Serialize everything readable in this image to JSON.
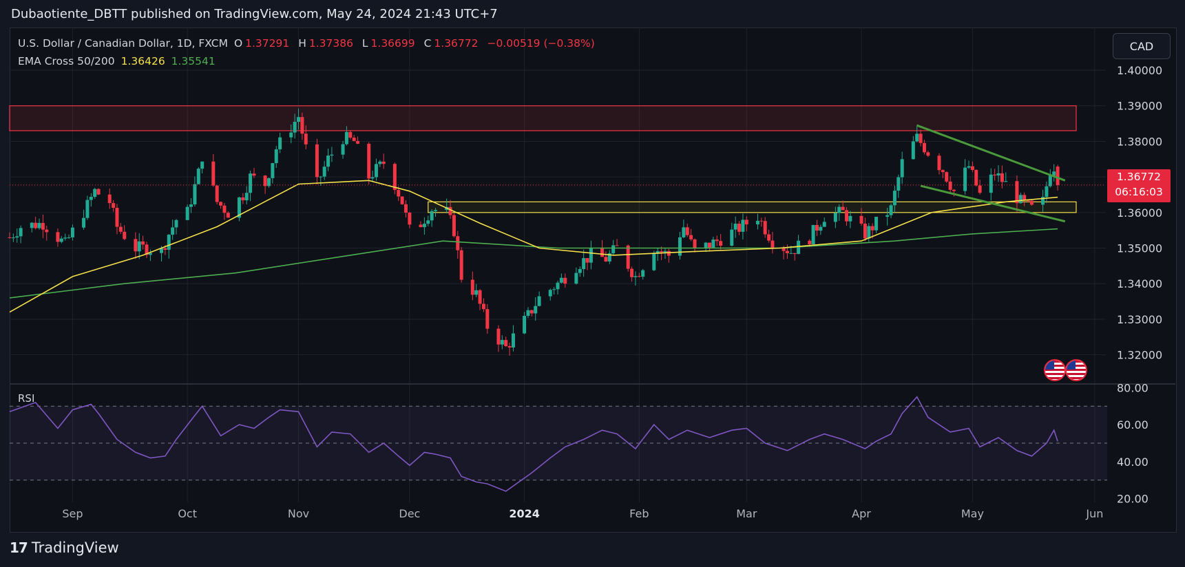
{
  "header": {
    "published_text": "Dubaotiente_DBTT published on TradingView.com, May 24, 2024 21:43 UTC+7"
  },
  "legend": {
    "symbol": "U.S. Dollar / Canadian Dollar, 1D, FXCM",
    "open_label": "O",
    "open": "1.37291",
    "high_label": "H",
    "high": "1.37386",
    "low_label": "L",
    "low": "1.36699",
    "close_label": "C",
    "close": "1.36772",
    "change": "−0.00519 (−0.38%)",
    "indicator": "EMA Cross 50/200",
    "ema50": "1.36426",
    "ema200": "1.35541"
  },
  "currency_button": "CAD",
  "price_tag": {
    "price": "1.36772",
    "countdown": "06:16:03"
  },
  "rsi_label": "RSI",
  "footer": {
    "brand": "TradingView"
  },
  "colors": {
    "up": "#22ab94",
    "down": "#f23645",
    "ema50": "#f5e04a",
    "ema200": "#4caf50",
    "rsi": "#7e57c2",
    "zone_red": "#f23645",
    "zone_yellow": "#f5e04a",
    "channel": "#4a9a3c"
  },
  "chart_data": [
    {
      "type": "candlestick",
      "symbol": "USDCAD",
      "timeframe": "1D",
      "ylim": [
        1.312,
        1.412
      ],
      "y_ticks": [
        "1.32000",
        "1.33000",
        "1.34000",
        "1.35000",
        "1.36000",
        "1.37000",
        "1.38000",
        "1.39000",
        "1.40000"
      ],
      "x_ticks": [
        {
          "label": "Sep",
          "date": "2023-09-01"
        },
        {
          "label": "Oct",
          "date": "2023-10-02"
        },
        {
          "label": "Nov",
          "date": "2023-11-01"
        },
        {
          "label": "Dec",
          "date": "2023-12-01"
        },
        {
          "label": "2024",
          "date": "2024-01-01"
        },
        {
          "label": "Feb",
          "date": "2024-02-01"
        },
        {
          "label": "Mar",
          "date": "2024-03-01"
        },
        {
          "label": "Apr",
          "date": "2024-04-01"
        },
        {
          "label": "May",
          "date": "2024-05-01"
        },
        {
          "label": "Jun",
          "date": "2024-06-03"
        }
      ],
      "x_range": [
        "2023-08-15",
        "2024-06-06"
      ],
      "close_path": [
        [
          "2023-08-15",
          1.353
        ],
        [
          "2023-08-18",
          1.356
        ],
        [
          "2023-08-24",
          1.357
        ],
        [
          "2023-08-30",
          1.351
        ],
        [
          "2023-09-05",
          1.362
        ],
        [
          "2023-09-07",
          1.366
        ],
        [
          "2023-09-11",
          1.363
        ],
        [
          "2023-09-13",
          1.356
        ],
        [
          "2023-09-18",
          1.35
        ],
        [
          "2023-09-21",
          1.35
        ],
        [
          "2023-09-25",
          1.349
        ],
        [
          "2023-09-27",
          1.354
        ],
        [
          "2023-09-29",
          1.358
        ],
        [
          "2023-10-02",
          1.36
        ],
        [
          "2023-10-05",
          1.371
        ],
        [
          "2023-10-06",
          1.376
        ],
        [
          "2023-10-10",
          1.363
        ],
        [
          "2023-10-13",
          1.36
        ],
        [
          "2023-10-17",
          1.365
        ],
        [
          "2023-10-19",
          1.37
        ],
        [
          "2023-10-23",
          1.368
        ],
        [
          "2023-10-26",
          1.378
        ],
        [
          "2023-10-30",
          1.384
        ],
        [
          "2023-11-01",
          1.387
        ],
        [
          "2023-11-03",
          1.378
        ],
        [
          "2023-11-06",
          1.368
        ],
        [
          "2023-11-09",
          1.375
        ],
        [
          "2023-11-13",
          1.381
        ],
        [
          "2023-11-16",
          1.38
        ],
        [
          "2023-11-20",
          1.37
        ],
        [
          "2023-11-24",
          1.374
        ],
        [
          "2023-11-27",
          1.368
        ],
        [
          "2023-11-29",
          1.363
        ],
        [
          "2023-12-01",
          1.355
        ],
        [
          "2023-12-04",
          1.357
        ],
        [
          "2023-12-07",
          1.361
        ],
        [
          "2023-12-11",
          1.36
        ],
        [
          "2023-12-13",
          1.355
        ],
        [
          "2023-12-15",
          1.342
        ],
        [
          "2023-12-19",
          1.337
        ],
        [
          "2023-12-22",
          1.328
        ],
        [
          "2023-12-27",
          1.322
        ],
        [
          "2024-01-02",
          1.331
        ],
        [
          "2024-01-05",
          1.336
        ],
        [
          "2024-01-10",
          1.34
        ],
        [
          "2024-01-15",
          1.345
        ],
        [
          "2024-01-19",
          1.348
        ],
        [
          "2024-01-23",
          1.347
        ],
        [
          "2024-01-26",
          1.35
        ],
        [
          "2024-01-31",
          1.342
        ],
        [
          "2024-02-05",
          1.35
        ],
        [
          "2024-02-09",
          1.348
        ],
        [
          "2024-02-13",
          1.356
        ],
        [
          "2024-02-16",
          1.349
        ],
        [
          "2024-02-22",
          1.352
        ],
        [
          "2024-02-27",
          1.355
        ],
        [
          "2024-03-04",
          1.359
        ],
        [
          "2024-03-08",
          1.352
        ],
        [
          "2024-03-13",
          1.349
        ],
        [
          "2024-03-18",
          1.353
        ],
        [
          "2024-03-22",
          1.359
        ],
        [
          "2024-03-27",
          1.36
        ],
        [
          "2024-04-02",
          1.354
        ],
        [
          "2024-04-05",
          1.357
        ],
        [
          "2024-04-09",
          1.361
        ],
        [
          "2024-04-12",
          1.374
        ],
        [
          "2024-04-16",
          1.381
        ],
        [
          "2024-04-19",
          1.377
        ],
        [
          "2024-04-23",
          1.372
        ],
        [
          "2024-04-26",
          1.366
        ],
        [
          "2024-04-30",
          1.373
        ],
        [
          "2024-05-03",
          1.365
        ],
        [
          "2024-05-07",
          1.371
        ],
        [
          "2024-05-10",
          1.368
        ],
        [
          "2024-05-14",
          1.363
        ],
        [
          "2024-05-17",
          1.361
        ],
        [
          "2024-05-20",
          1.363
        ],
        [
          "2024-05-22",
          1.372
        ],
        [
          "2024-05-23",
          1.373
        ],
        [
          "2024-05-24",
          1.3677
        ]
      ],
      "ema50": [
        [
          "2023-08-15",
          1.332
        ],
        [
          "2023-09-01",
          1.342
        ],
        [
          "2023-09-20",
          1.348
        ],
        [
          "2023-10-10",
          1.356
        ],
        [
          "2023-11-01",
          1.368
        ],
        [
          "2023-11-20",
          1.369
        ],
        [
          "2023-12-01",
          1.366
        ],
        [
          "2023-12-20",
          1.357
        ],
        [
          "2024-01-05",
          1.35
        ],
        [
          "2024-01-25",
          1.348
        ],
        [
          "2024-02-15",
          1.349
        ],
        [
          "2024-03-10",
          1.35
        ],
        [
          "2024-04-01",
          1.352
        ],
        [
          "2024-04-20",
          1.36
        ],
        [
          "2024-05-10",
          1.363
        ],
        [
          "2024-05-24",
          1.3643
        ]
      ],
      "ema200": [
        [
          "2023-08-15",
          1.336
        ],
        [
          "2023-09-15",
          1.34
        ],
        [
          "2023-10-15",
          1.343
        ],
        [
          "2023-11-15",
          1.348
        ],
        [
          "2023-12-10",
          1.352
        ],
        [
          "2024-01-10",
          1.35
        ],
        [
          "2024-02-10",
          1.35
        ],
        [
          "2024-03-10",
          1.35
        ],
        [
          "2024-04-10",
          1.352
        ],
        [
          "2024-05-01",
          1.354
        ],
        [
          "2024-05-24",
          1.3554
        ]
      ],
      "red_zone": {
        "from": "2023-08-15",
        "to": "2024-05-29",
        "y_high": 1.39,
        "y_low": 1.383
      },
      "yellow_zone": {
        "from": "2023-12-06",
        "to": "2024-05-29",
        "y_high": 1.363,
        "y_low": 1.36
      },
      "channel_upper": [
        [
          "2024-04-16",
          1.3845
        ],
        [
          "2024-05-26",
          1.369
        ]
      ],
      "channel_lower": [
        [
          "2024-04-17",
          1.3675
        ],
        [
          "2024-05-26",
          1.3575
        ]
      ]
    },
    {
      "type": "line",
      "name": "RSI",
      "ylim": [
        18,
        82
      ],
      "y_ticks": [
        "20.00",
        "40.00",
        "60.00",
        "80.00"
      ],
      "bands": [
        70,
        50,
        30
      ],
      "values": [
        [
          "2023-08-15",
          67
        ],
        [
          "2023-08-22",
          72
        ],
        [
          "2023-08-28",
          58
        ],
        [
          "2023-09-01",
          68
        ],
        [
          "2023-09-06",
          71
        ],
        [
          "2023-09-08",
          66
        ],
        [
          "2023-09-13",
          52
        ],
        [
          "2023-09-18",
          45
        ],
        [
          "2023-09-22",
          42
        ],
        [
          "2023-09-26",
          43
        ],
        [
          "2023-09-29",
          52
        ],
        [
          "2023-10-04",
          65
        ],
        [
          "2023-10-06",
          70
        ],
        [
          "2023-10-11",
          54
        ],
        [
          "2023-10-16",
          60
        ],
        [
          "2023-10-20",
          58
        ],
        [
          "2023-10-24",
          64
        ],
        [
          "2023-10-27",
          68
        ],
        [
          "2023-11-01",
          67
        ],
        [
          "2023-11-06",
          48
        ],
        [
          "2023-11-10",
          56
        ],
        [
          "2023-11-15",
          55
        ],
        [
          "2023-11-20",
          45
        ],
        [
          "2023-11-24",
          50
        ],
        [
          "2023-11-28",
          43
        ],
        [
          "2023-12-01",
          38
        ],
        [
          "2023-12-05",
          45
        ],
        [
          "2023-12-08",
          44
        ],
        [
          "2023-12-12",
          42
        ],
        [
          "2023-12-15",
          32
        ],
        [
          "2023-12-19",
          29
        ],
        [
          "2023-12-22",
          28
        ],
        [
          "2023-12-27",
          24
        ],
        [
          "2024-01-03",
          34
        ],
        [
          "2024-01-08",
          42
        ],
        [
          "2024-01-12",
          48
        ],
        [
          "2024-01-17",
          52
        ],
        [
          "2024-01-22",
          57
        ],
        [
          "2024-01-26",
          55
        ],
        [
          "2024-01-31",
          47
        ],
        [
          "2024-02-05",
          60
        ],
        [
          "2024-02-09",
          52
        ],
        [
          "2024-02-14",
          57
        ],
        [
          "2024-02-20",
          53
        ],
        [
          "2024-02-26",
          57
        ],
        [
          "2024-03-01",
          58
        ],
        [
          "2024-03-06",
          50
        ],
        [
          "2024-03-12",
          46
        ],
        [
          "2024-03-18",
          52
        ],
        [
          "2024-03-22",
          55
        ],
        [
          "2024-03-27",
          52
        ],
        [
          "2024-04-02",
          47
        ],
        [
          "2024-04-05",
          51
        ],
        [
          "2024-04-09",
          55
        ],
        [
          "2024-04-12",
          66
        ],
        [
          "2024-04-16",
          75
        ],
        [
          "2024-04-19",
          64
        ],
        [
          "2024-04-25",
          56
        ],
        [
          "2024-04-30",
          58
        ],
        [
          "2024-05-03",
          48
        ],
        [
          "2024-05-08",
          53
        ],
        [
          "2024-05-13",
          46
        ],
        [
          "2024-05-17",
          43
        ],
        [
          "2024-05-21",
          50
        ],
        [
          "2024-05-23",
          57
        ],
        [
          "2024-05-24",
          51
        ]
      ]
    }
  ]
}
